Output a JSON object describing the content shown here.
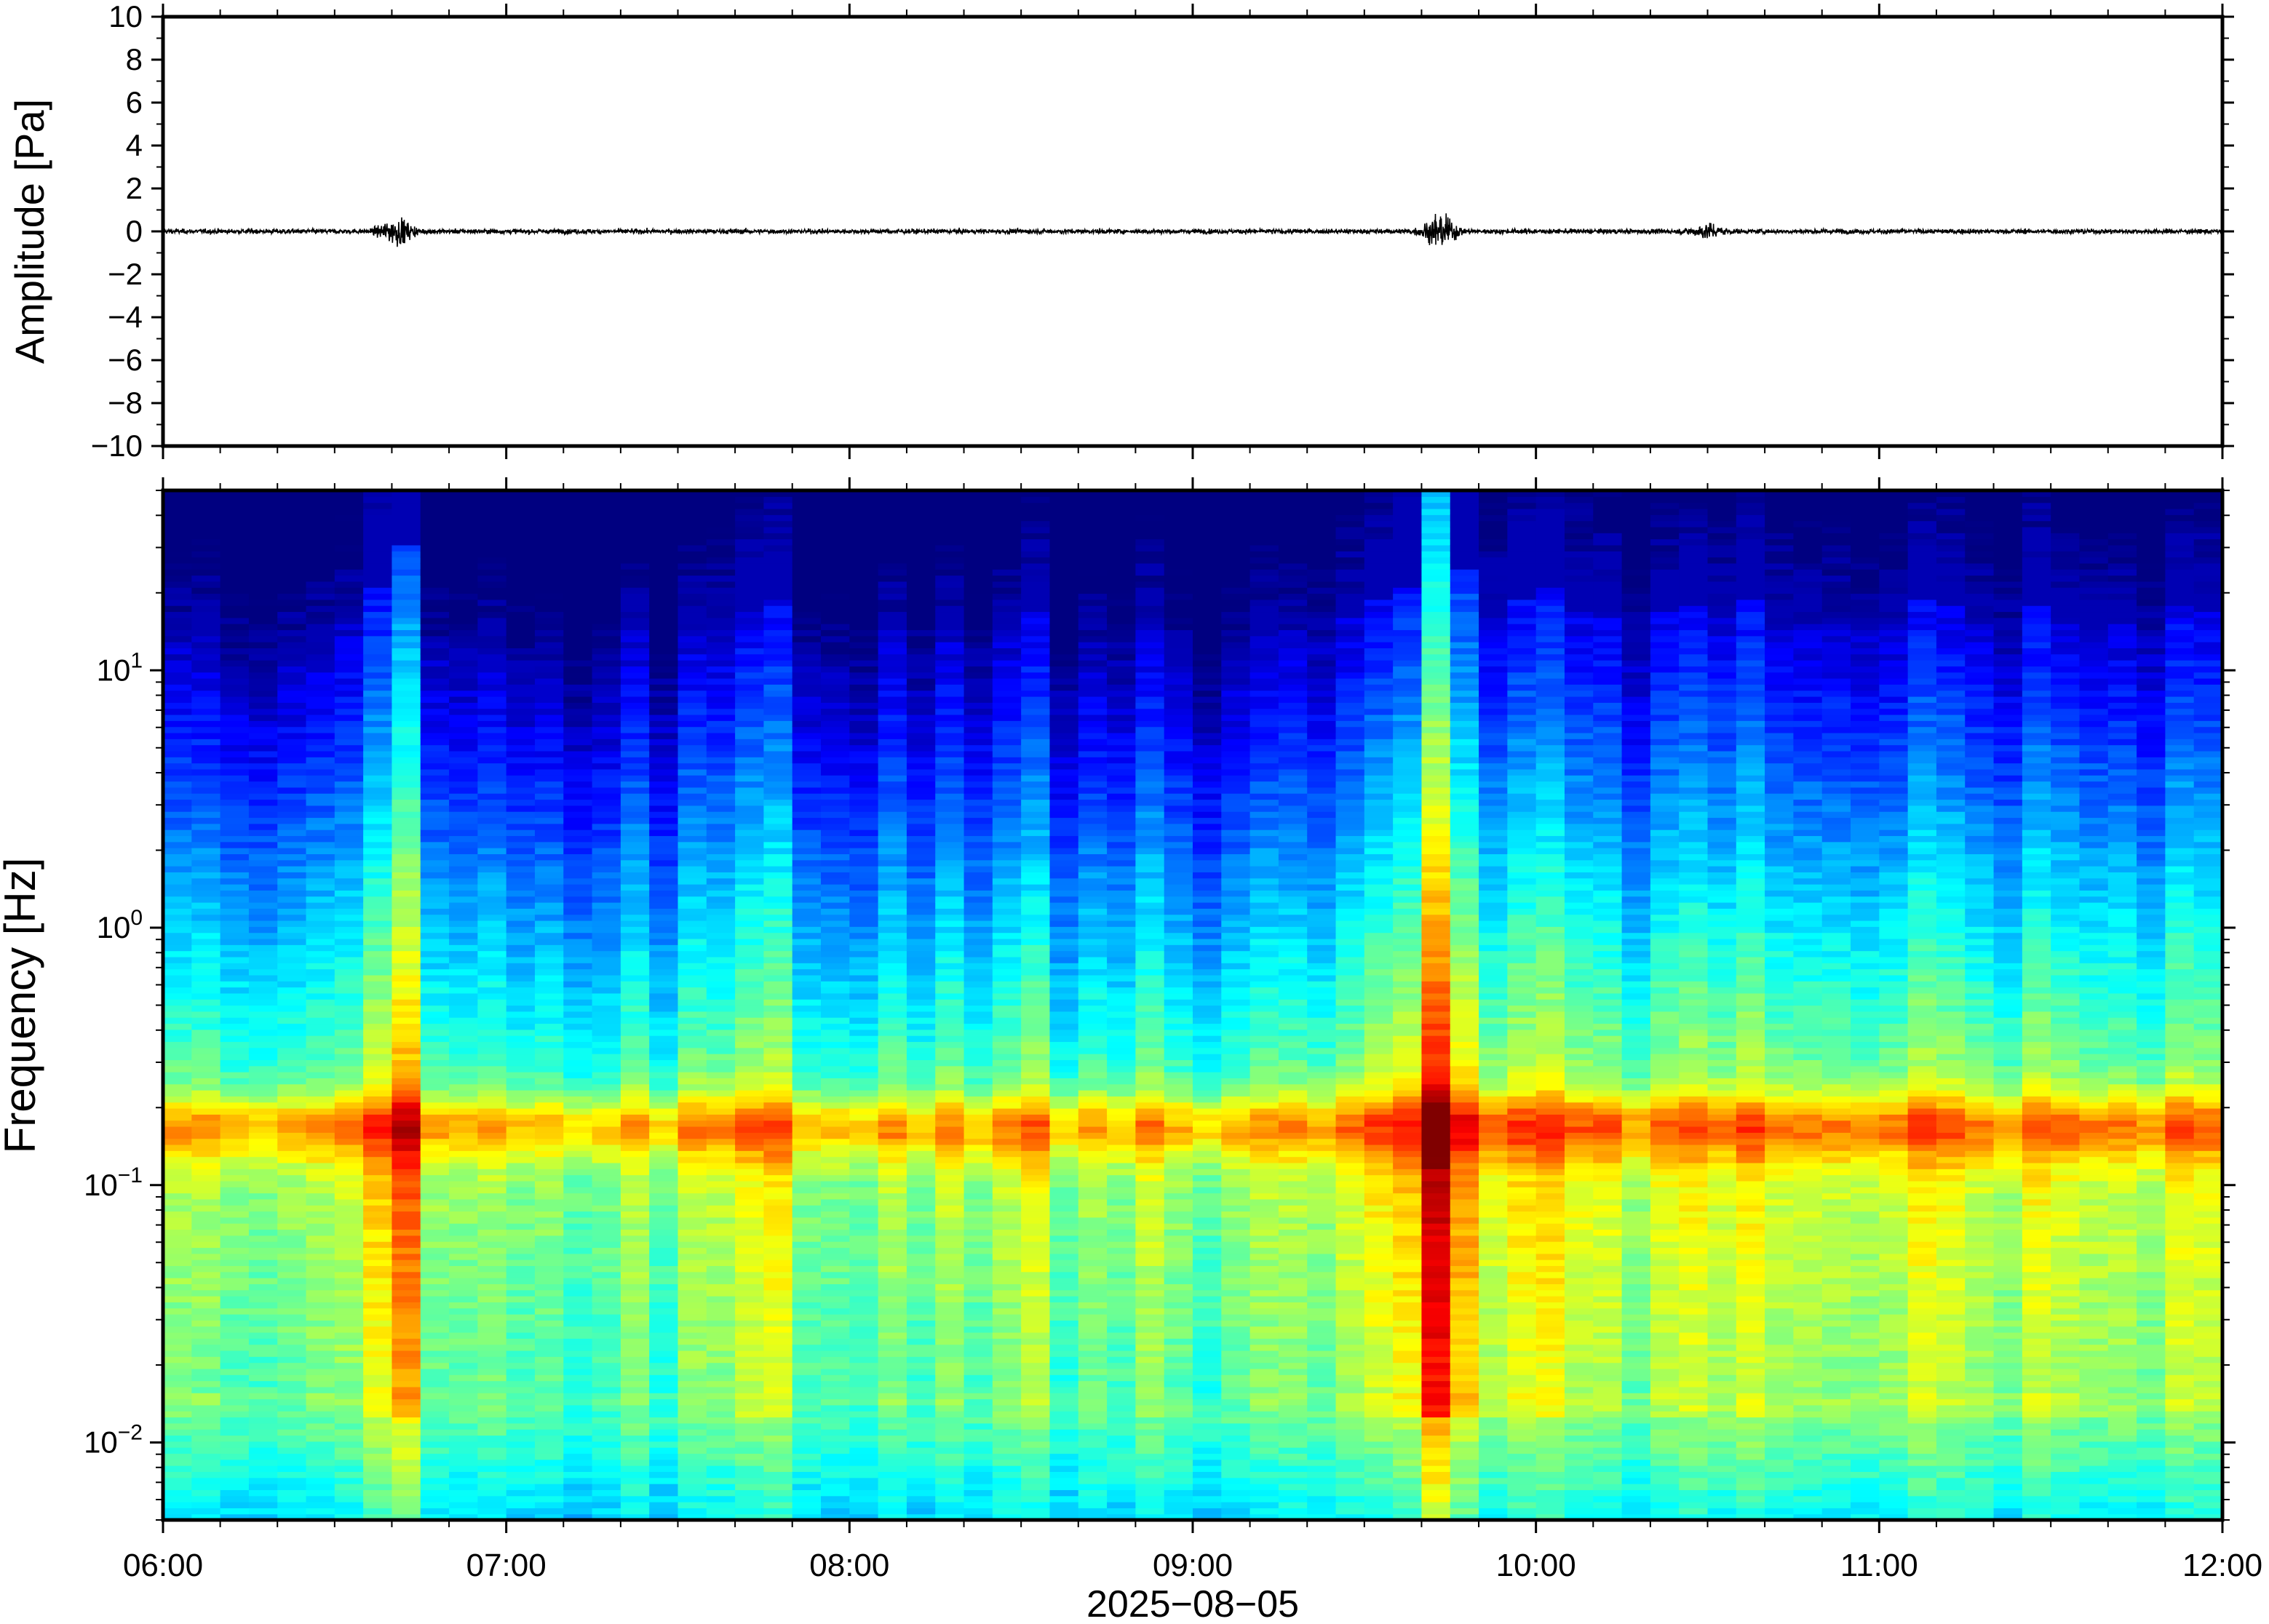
{
  "chart_data": [
    {
      "type": "line",
      "panel": "waveform",
      "ylabel": "Amplitude [Pa]",
      "ylim": [
        -10,
        10
      ],
      "yticks": [
        10,
        8,
        6,
        4,
        2,
        0,
        -2,
        -4,
        -6,
        -8,
        -10
      ],
      "ytick_labels": [
        "10",
        "8",
        "6",
        "4",
        "2",
        "0",
        "−2",
        "−4",
        "−6",
        "−8",
        "−10"
      ],
      "xlim_hours": [
        6,
        12
      ],
      "series": [
        {
          "baseline": 0,
          "noise_amplitude_pa": 0.15,
          "bursts": [
            {
              "center_hours": 6.68,
              "peak_pa": 0.8
            },
            {
              "center_hours": 9.72,
              "peak_pa": 1.0
            },
            {
              "center_hours": 10.5,
              "peak_pa": 0.4
            }
          ]
        }
      ]
    },
    {
      "type": "heatmap",
      "panel": "spectrogram",
      "ylabel": "Frequency [Hz]",
      "yscale": "log",
      "ylim_hz": [
        0.005,
        50
      ],
      "yticks_hz": [
        0.01,
        0.1,
        1,
        10
      ],
      "ytick_base": "10",
      "ytick_exponents": [
        "−2",
        "−1",
        "0",
        "1"
      ],
      "xlim_hours": [
        6,
        12
      ],
      "colormap": "jet",
      "features": {
        "microbarom_band_hz": [
          0.13,
          0.22
        ],
        "events_hours": [
          6.68,
          9.72
        ],
        "bright_columns_hours": [
          6.68,
          7.75,
          8.5,
          9.72,
          10.0,
          10.6
        ]
      }
    }
  ],
  "xaxis": {
    "tick_labels": [
      "06:00",
      "07:00",
      "08:00",
      "09:00",
      "10:00",
      "11:00",
      "12:00"
    ],
    "label": "2025−08−05"
  }
}
